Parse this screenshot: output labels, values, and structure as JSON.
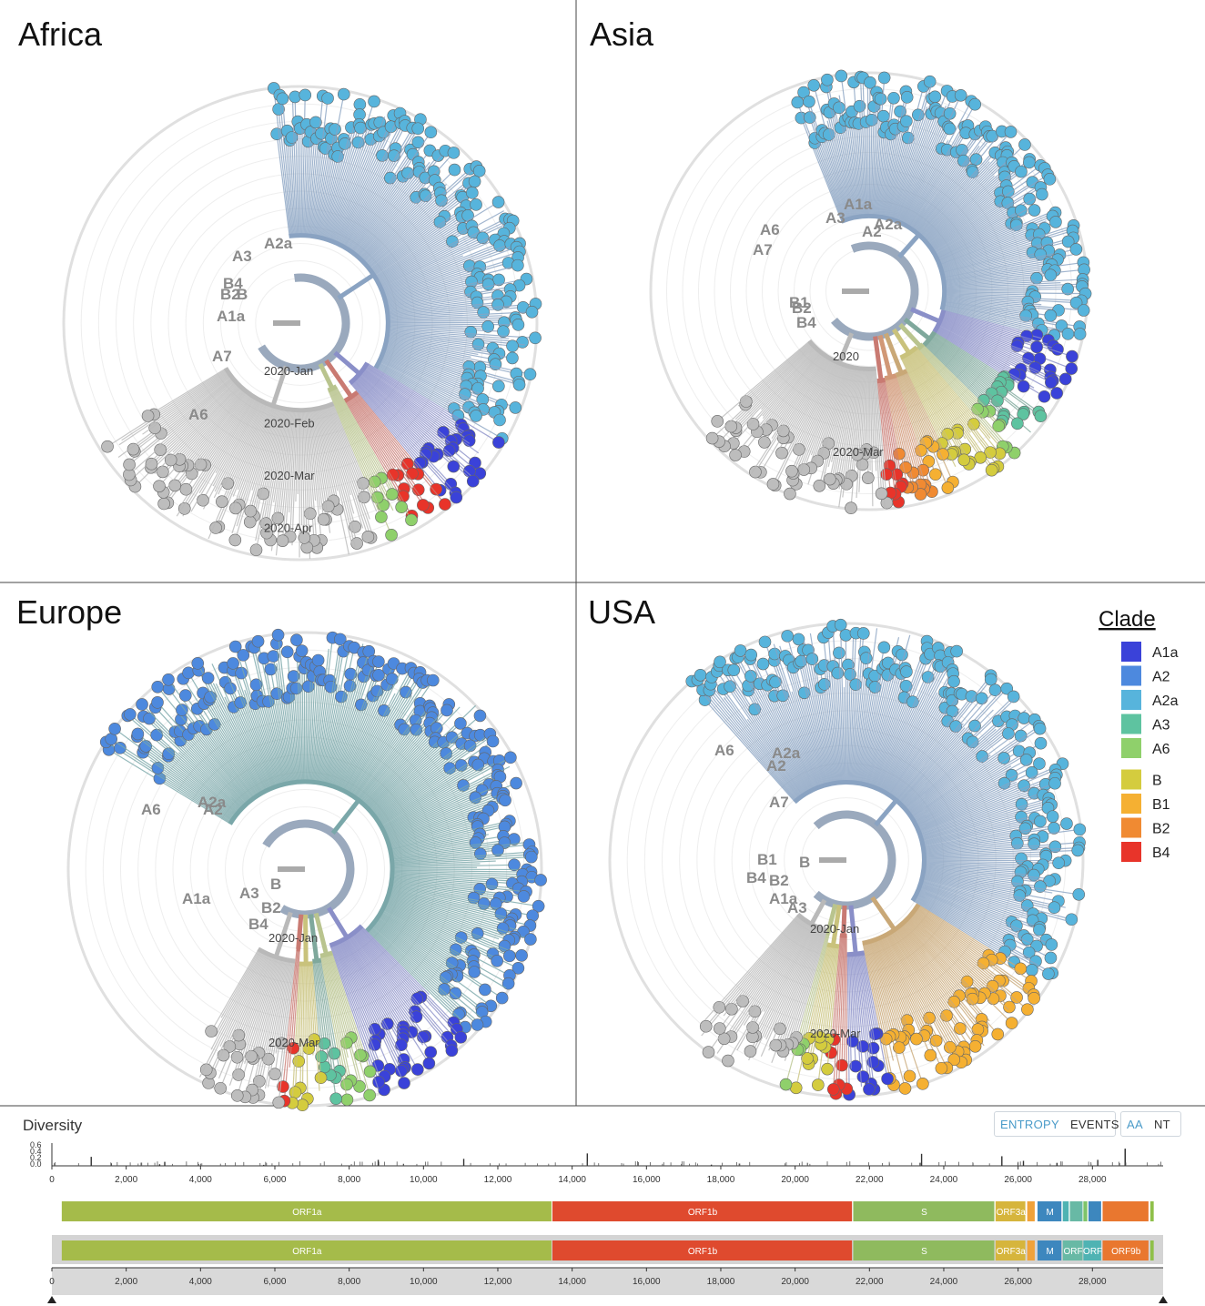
{
  "panels": [
    {
      "region": "Africa",
      "dates": [
        "2020-Jan",
        "2020-Feb",
        "2020-Mar",
        "2020-Apr"
      ],
      "clade_labels": [
        "A2a",
        "A3",
        "B4",
        "B2",
        "B",
        "A1a",
        "A7",
        "A6"
      ],
      "clade_mix": {
        "A2a": 0.52,
        "A1a": 0.08,
        "B4": 0.04,
        "A6": 0.03,
        "grey": 0.33
      }
    },
    {
      "region": "Asia",
      "dates": [
        "2020",
        "2020-Mar"
      ],
      "clade_labels": [
        "A1a",
        "A3",
        "A2a",
        "A2",
        "A6",
        "A7",
        "B1",
        "B2",
        "B4"
      ],
      "clade_mix": {
        "A2a": 0.5,
        "A1a": 0.07,
        "A3": 0.05,
        "A6": 0.02,
        "B": 0.06,
        "B1": 0.03,
        "B2": 0.03,
        "B4": 0.02,
        "grey": 0.22
      }
    },
    {
      "region": "Europe",
      "dates": [
        "2020-Jan",
        "2020-Mar"
      ],
      "clade_labels": [
        "A2a",
        "A2",
        "A6",
        "A1a",
        "A3",
        "B",
        "B2",
        "B4"
      ],
      "clade_mix": {
        "A2": 0.72,
        "A1a": 0.1,
        "A6": 0.03,
        "A3": 0.02,
        "B": 0.03,
        "B4": 0.01,
        "grey": 0.09
      }
    },
    {
      "region": "USA",
      "dates": [
        "2020-Jan",
        "2020-Mar"
      ],
      "clade_labels": [
        "A6",
        "A2a",
        "A2",
        "A7",
        "B1",
        "B",
        "B4",
        "B2",
        "A1a",
        "A3"
      ],
      "clade_mix": {
        "A2a": 0.62,
        "B1": 0.18,
        "A1a": 0.04,
        "B4": 0.02,
        "B": 0.03,
        "A6": 0.01,
        "grey": 0.1
      }
    }
  ],
  "legend": {
    "title": "Clade",
    "items": [
      {
        "label": "A1a",
        "color": "#3a42d9"
      },
      {
        "label": "A2",
        "color": "#4d89de"
      },
      {
        "label": "A2a",
        "color": "#57b4dc"
      },
      {
        "label": "A3",
        "color": "#5ec3a0"
      },
      {
        "label": "A6",
        "color": "#8fd06b"
      },
      {
        "label": "B",
        "color": "#d4cc3e"
      },
      {
        "label": "B1",
        "color": "#f5b032"
      },
      {
        "label": "B2",
        "color": "#f08a32"
      },
      {
        "label": "B4",
        "color": "#e8342a"
      }
    ]
  },
  "diversity": {
    "title": "Diversity",
    "yticks": [
      "0.6",
      "0.4",
      "0.2",
      "0.0"
    ],
    "xticks": [
      "0",
      "2,000",
      "4,000",
      "6,000",
      "8,000",
      "10,000",
      "12,000",
      "14,000",
      "16,000",
      "18,000",
      "20,000",
      "22,000",
      "24,000",
      "26,000",
      "28,000"
    ],
    "xtick_values": [
      0,
      2000,
      4000,
      6000,
      8000,
      10000,
      12000,
      14000,
      16000,
      18000,
      20000,
      22000,
      24000,
      26000,
      28000
    ],
    "x_max": 29903,
    "toggle_entropy": "ENTROPY",
    "toggle_events": "EVENTS",
    "toggle_aa": "AA",
    "toggle_nt": "NT",
    "spikes": [
      [
        1059,
        0.45
      ],
      [
        1600,
        0.1
      ],
      [
        2900,
        0.08
      ],
      [
        3037,
        0.2
      ],
      [
        5700,
        0.05
      ],
      [
        8782,
        0.3
      ],
      [
        11083,
        0.35
      ],
      [
        14408,
        0.62
      ],
      [
        17747,
        0.06
      ],
      [
        23403,
        0.6
      ],
      [
        25563,
        0.48
      ],
      [
        26144,
        0.25
      ],
      [
        27046,
        0.15
      ],
      [
        28144,
        0.3
      ],
      [
        28881,
        0.85
      ],
      [
        28882,
        0.85
      ],
      [
        28883,
        0.85
      ]
    ],
    "genes": [
      {
        "name": "ORF1a",
        "start": 266,
        "end": 13468,
        "color": "#a5bb4a"
      },
      {
        "name": "ORF1b",
        "start": 13468,
        "end": 21555,
        "color": "#df4a2e"
      },
      {
        "name": "S",
        "start": 21563,
        "end": 25384,
        "color": "#8fba5e"
      },
      {
        "name": "ORF3a",
        "start": 25393,
        "end": 26220,
        "color": "#d6b53c"
      },
      {
        "name": "",
        "start": 26245,
        "end": 26472,
        "color": "#f0a23a"
      },
      {
        "name": "M",
        "start": 26523,
        "end": 27191,
        "color": "#3d87be"
      },
      {
        "name": "",
        "start": 27202,
        "end": 27387,
        "color": "#4fb3b3"
      },
      {
        "name": "",
        "start": 27394,
        "end": 27759,
        "color": "#68b9a5"
      },
      {
        "name": "",
        "start": 27756,
        "end": 27887,
        "color": "#7ec46a"
      },
      {
        "name": "",
        "start": 27894,
        "end": 28259,
        "color": "#3d87be"
      },
      {
        "name": "",
        "start": 28274,
        "end": 29533,
        "color": "#e9772f"
      },
      {
        "name": "",
        "start": 29558,
        "end": 29674,
        "color": "#8fc04a"
      }
    ],
    "zoom_genes": [
      {
        "name": "ORF1a",
        "start": 266,
        "end": 13468,
        "color": "#a5bb4a"
      },
      {
        "name": "ORF1b",
        "start": 13468,
        "end": 21555,
        "color": "#df4a2e"
      },
      {
        "name": "S",
        "start": 21563,
        "end": 25384,
        "color": "#8fba5e"
      },
      {
        "name": "ORF3a",
        "start": 25393,
        "end": 26220,
        "color": "#d6b53c"
      },
      {
        "name": "",
        "start": 26245,
        "end": 26472,
        "color": "#f0a23a"
      },
      {
        "name": "M",
        "start": 26523,
        "end": 27191,
        "color": "#3d87be"
      },
      {
        "name": "ORF",
        "start": 27202,
        "end": 27759,
        "color": "#68b9a5"
      },
      {
        "name": "ORF",
        "start": 27756,
        "end": 28259,
        "color": "#4fb3b3"
      },
      {
        "name": "ORF9b",
        "start": 28274,
        "end": 29533,
        "color": "#e9772f"
      },
      {
        "name": "",
        "start": 29558,
        "end": 29674,
        "color": "#8fc04a"
      }
    ]
  }
}
